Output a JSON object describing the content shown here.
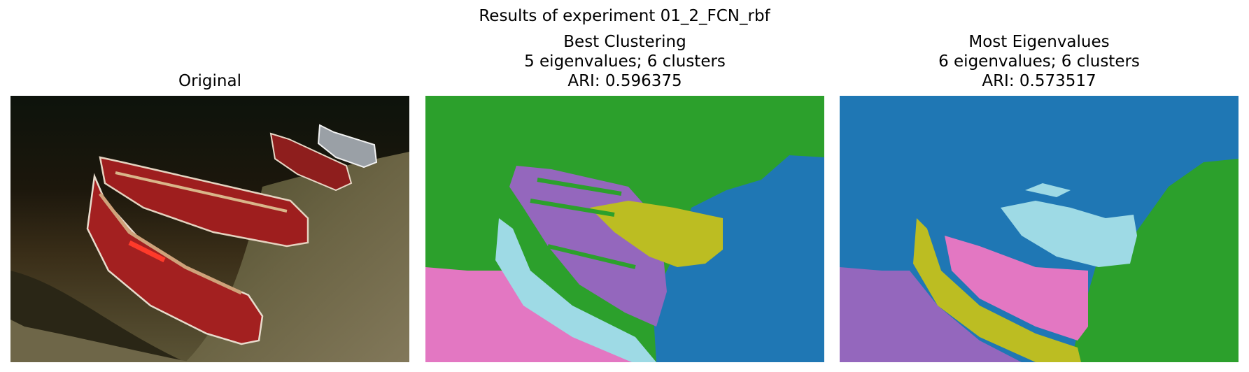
{
  "figure": {
    "suptitle": "Results of experiment 01_2_FCN_rbf",
    "panels": [
      {
        "title_lines": [
          "Original"
        ]
      },
      {
        "title_lines": [
          "Best Clustering",
          "5 eigenvalues; 6 clusters",
          "ARI: 0.596375"
        ]
      },
      {
        "title_lines": [
          "Most Eigenvalues",
          "6 eigenvalues; 6 clusters",
          "ARI: 0.573517"
        ]
      }
    ]
  },
  "colors": {
    "cluster_green": "#2ca02c",
    "cluster_blue": "#1f77b4",
    "cluster_purple": "#9467bd",
    "cluster_pink": "#e377c2",
    "cluster_olive": "#bcbd22",
    "cluster_cyan": "#9edae5",
    "canoe_red": "#a01e1e"
  }
}
